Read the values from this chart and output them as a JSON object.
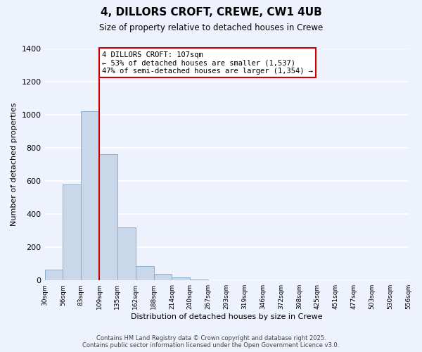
{
  "title": "4, DILLORS CROFT, CREWE, CW1 4UB",
  "subtitle": "Size of property relative to detached houses in Crewe",
  "xlabel": "Distribution of detached houses by size in Crewe",
  "ylabel": "Number of detached properties",
  "bar_values": [
    65,
    580,
    1020,
    760,
    320,
    88,
    40,
    18,
    5,
    0,
    0,
    0,
    0,
    0,
    0,
    0,
    0,
    0,
    0,
    0
  ],
  "bin_labels": [
    "30sqm",
    "56sqm",
    "83sqm",
    "109sqm",
    "135sqm",
    "162sqm",
    "188sqm",
    "214sqm",
    "240sqm",
    "267sqm",
    "293sqm",
    "319sqm",
    "346sqm",
    "372sqm",
    "398sqm",
    "425sqm",
    "451sqm",
    "477sqm",
    "503sqm",
    "530sqm",
    "556sqm"
  ],
  "bar_color": "#c8d8ea",
  "bar_edge_color": "#88b0cc",
  "vline_x": 3,
  "vline_color": "#cc0000",
  "annotation_text": "4 DILLORS CROFT: 107sqm\n← 53% of detached houses are smaller (1,537)\n47% of semi-detached houses are larger (1,354) →",
  "annotation_box_color": "#ffffff",
  "annotation_box_edge_color": "#cc0000",
  "ylim": [
    0,
    1400
  ],
  "yticks": [
    0,
    200,
    400,
    600,
    800,
    1000,
    1200,
    1400
  ],
  "background_color": "#eef2fc",
  "grid_color": "#ffffff",
  "footer_line1": "Contains HM Land Registry data © Crown copyright and database right 2025.",
  "footer_line2": "Contains public sector information licensed under the Open Government Licence v3.0."
}
